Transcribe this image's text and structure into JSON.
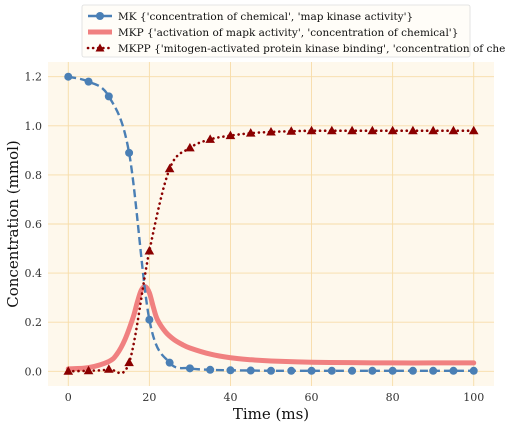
{
  "chart_data": {
    "type": "line",
    "xlabel": "Time (ms)",
    "ylabel": "Concentration (mmol)",
    "xlim": [
      -5,
      105
    ],
    "ylim": [
      -0.06,
      1.26
    ],
    "xticks": [
      0,
      20,
      40,
      60,
      80,
      100
    ],
    "yticks": [
      0.0,
      0.2,
      0.4,
      0.6,
      0.8,
      1.0,
      1.2
    ],
    "xtick_labels": [
      "0",
      "20",
      "40",
      "60",
      "80",
      "100"
    ],
    "ytick_labels": [
      "0.0",
      "0.2",
      "0.4",
      "0.6",
      "0.8",
      "1.0",
      "1.2"
    ],
    "grid": true,
    "legend_position": "top-center",
    "colors": {
      "plot_background": "#fef8ec",
      "grid": "#f7dca8",
      "MK": "#4a7fb5",
      "MKP": "#f08080",
      "MKPP": "#8b0000"
    },
    "series": [
      {
        "name": "MK",
        "legend": "MK {'concentration of chemical', 'map kinase activity'}",
        "style": "dashed",
        "marker": "circle",
        "x": [
          0,
          5,
          10,
          15,
          20,
          25,
          30,
          35,
          40,
          45,
          50,
          55,
          60,
          65,
          70,
          75,
          80,
          85,
          90,
          95,
          100
        ],
        "values": [
          1.2,
          1.18,
          1.12,
          0.89,
          0.21,
          0.035,
          0.012,
          0.006,
          0.004,
          0.003,
          0.002,
          0.002,
          0.002,
          0.002,
          0.002,
          0.002,
          0.002,
          0.002,
          0.002,
          0.002,
          0.002
        ]
      },
      {
        "name": "MKP",
        "legend": "MKP {'activation of mapk activity', 'concentration of chemical'}",
        "style": "solid-thick",
        "marker": "none",
        "x": [
          0,
          5,
          10,
          12,
          14,
          16,
          17,
          18,
          19,
          20,
          21,
          22,
          24,
          26,
          28,
          30,
          35,
          40,
          45,
          50,
          60,
          70,
          80,
          90,
          100
        ],
        "values": [
          0.01,
          0.015,
          0.04,
          0.07,
          0.13,
          0.22,
          0.28,
          0.33,
          0.345,
          0.32,
          0.26,
          0.21,
          0.16,
          0.13,
          0.11,
          0.095,
          0.07,
          0.055,
          0.047,
          0.042,
          0.037,
          0.035,
          0.034,
          0.034,
          0.034
        ]
      },
      {
        "name": "MKPP",
        "legend": "MKPP {'mitogen-activated protein kinase binding', 'concentration of chemical'}",
        "style": "dotted",
        "marker": "triangle",
        "x": [
          0,
          5,
          10,
          15,
          20,
          25,
          30,
          35,
          40,
          45,
          50,
          55,
          60,
          65,
          70,
          75,
          80,
          85,
          90,
          95,
          100
        ],
        "values": [
          0.0,
          0.002,
          0.008,
          0.035,
          0.49,
          0.825,
          0.91,
          0.945,
          0.96,
          0.97,
          0.975,
          0.978,
          0.98,
          0.98,
          0.98,
          0.98,
          0.98,
          0.98,
          0.98,
          0.98,
          0.98
        ]
      }
    ]
  }
}
